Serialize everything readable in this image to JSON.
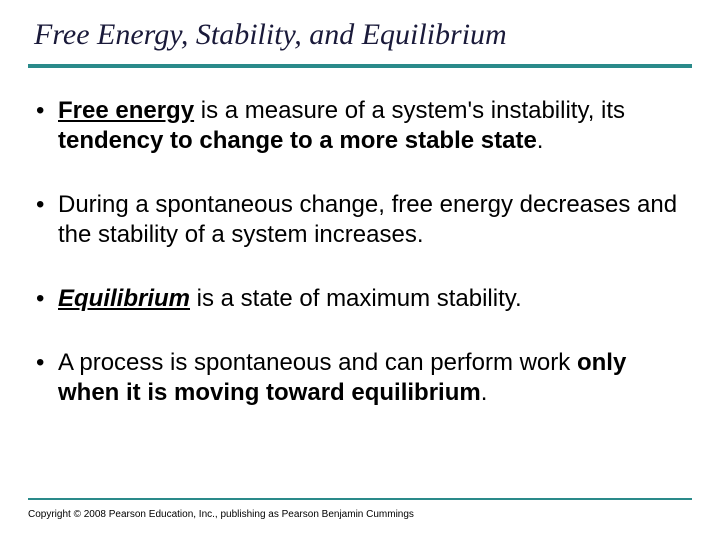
{
  "colors": {
    "rule": "#2a8a8a",
    "title_text": "#1a1a3a",
    "body_text": "#000000",
    "background": "#ffffff"
  },
  "typography": {
    "title_family": "Times New Roman",
    "title_style": "italic",
    "title_size_pt": 30,
    "body_family": "Arial",
    "body_size_pt": 24,
    "copyright_size_pt": 10
  },
  "title": "Free Energy, Stability, and Equilibrium",
  "bullets": [
    {
      "runs": [
        {
          "t": "Free energy",
          "b": true,
          "u": true
        },
        {
          "t": " is a measure of a system's instability, its "
        },
        {
          "t": "tendency to change to a more stable state",
          "b": true
        },
        {
          "t": "."
        }
      ]
    },
    {
      "runs": [
        {
          "t": "During a spontaneous change, free energy decreases and the stability of a system increases."
        }
      ]
    },
    {
      "runs": [
        {
          "t": "Equilibrium",
          "bi": true
        },
        {
          "t": " is a state of maximum stability."
        }
      ]
    },
    {
      "runs": [
        {
          "t": "A process is spontaneous and can perform work "
        },
        {
          "t": "only when it is moving toward equilibrium",
          "b": true
        },
        {
          "t": "."
        }
      ]
    }
  ],
  "copyright": "Copyright © 2008 Pearson Education, Inc., publishing as Pearson Benjamin Cummings"
}
